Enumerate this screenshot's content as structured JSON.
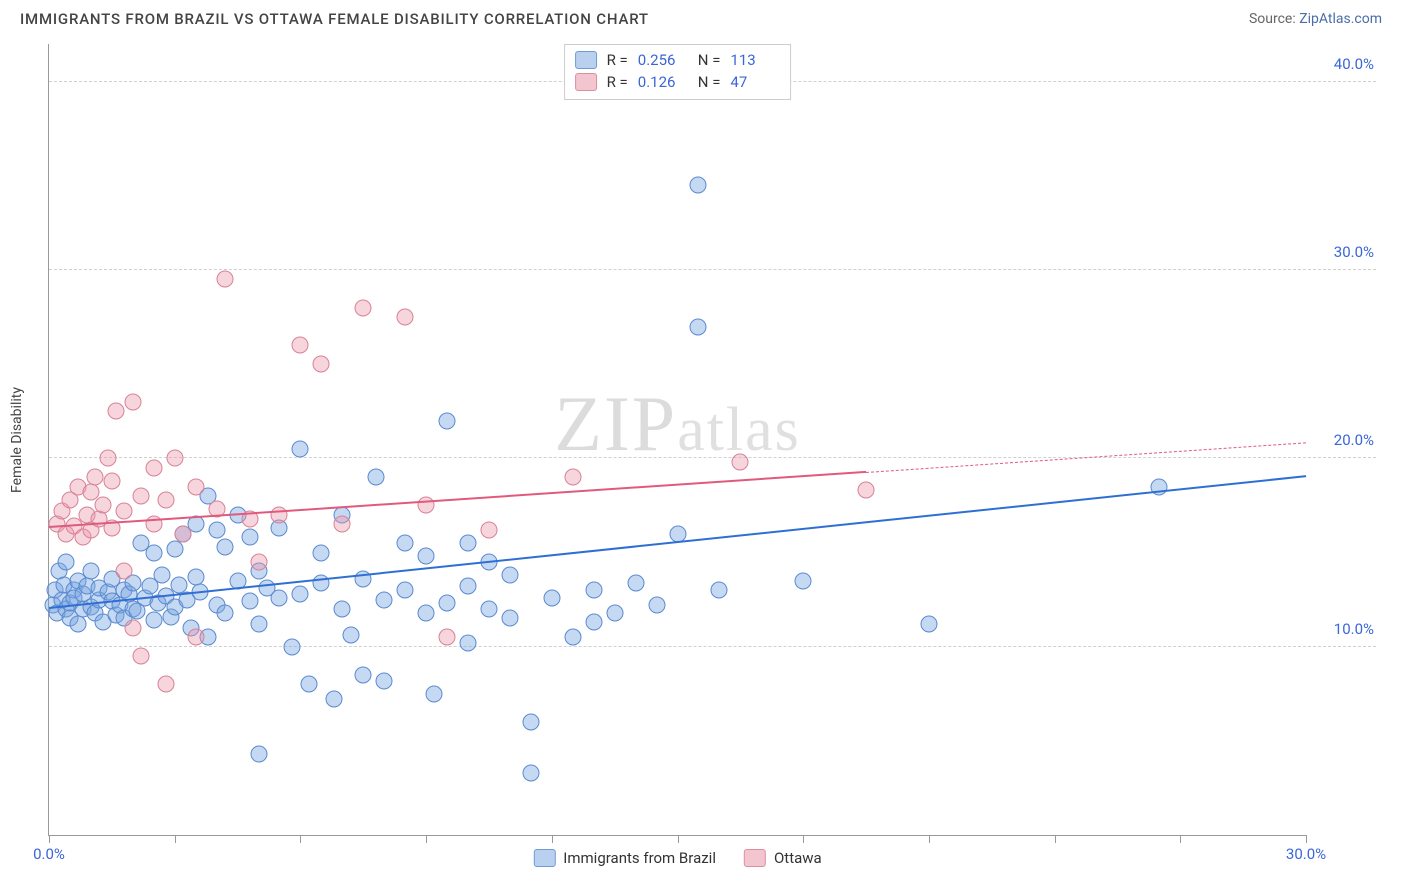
{
  "header": {
    "title": "IMMIGRANTS FROM BRAZIL VS OTTAWA FEMALE DISABILITY CORRELATION CHART",
    "source_prefix": "Source: ",
    "source_link": "ZipAtlas.com"
  },
  "watermark": {
    "z": "ZIP",
    "rest": "atlas"
  },
  "chart": {
    "type": "scatter",
    "xlim": [
      0,
      30
    ],
    "ylim": [
      0,
      42
    ],
    "x_ticks": [
      0,
      3,
      6,
      9,
      12,
      15,
      18,
      21,
      24,
      27,
      30
    ],
    "x_labels": [
      {
        "v": 0,
        "t": "0.0%"
      },
      {
        "v": 30,
        "t": "30.0%"
      }
    ],
    "y_gridlines": [
      10,
      20,
      30,
      40
    ],
    "y_labels": [
      {
        "v": 10,
        "t": "10.0%"
      },
      {
        "v": 20,
        "t": "20.0%"
      },
      {
        "v": 30,
        "t": "30.0%"
      },
      {
        "v": 40,
        "t": "40.0%"
      }
    ],
    "yaxis_title": "Female Disability",
    "marker_radius": 8.5,
    "marker_border_width": 1.2,
    "series": [
      {
        "name": "Immigrants from Brazil",
        "R": "0.256",
        "N": "113",
        "fill": "rgba(120,165,225,0.42)",
        "stroke": "#5a8ad0",
        "swatch_fill": "#b9d0ef",
        "swatch_stroke": "#6f9cd8",
        "trend_color": "#2f6fd4",
        "trend": {
          "x1": 0,
          "y1": 12.0,
          "x2": 30,
          "y2": 19.0,
          "x_data_max": 30
        },
        "points": [
          [
            0.1,
            12.2
          ],
          [
            0.15,
            13.0
          ],
          [
            0.2,
            11.8
          ],
          [
            0.25,
            14.0
          ],
          [
            0.3,
            12.5
          ],
          [
            0.35,
            13.3
          ],
          [
            0.4,
            12.0
          ],
          [
            0.4,
            14.5
          ],
          [
            0.5,
            12.3
          ],
          [
            0.5,
            11.5
          ],
          [
            0.6,
            13.0
          ],
          [
            0.6,
            12.6
          ],
          [
            0.7,
            13.5
          ],
          [
            0.7,
            11.2
          ],
          [
            0.8,
            12.0
          ],
          [
            0.8,
            12.8
          ],
          [
            0.9,
            13.2
          ],
          [
            1.0,
            12.1
          ],
          [
            1.0,
            14.0
          ],
          [
            1.1,
            11.8
          ],
          [
            1.2,
            12.5
          ],
          [
            1.2,
            13.1
          ],
          [
            1.3,
            11.3
          ],
          [
            1.4,
            12.9
          ],
          [
            1.5,
            12.4
          ],
          [
            1.5,
            13.6
          ],
          [
            1.6,
            11.7
          ],
          [
            1.7,
            12.2
          ],
          [
            1.8,
            13.0
          ],
          [
            1.8,
            11.5
          ],
          [
            1.9,
            12.8
          ],
          [
            2.0,
            12.0
          ],
          [
            2.0,
            13.4
          ],
          [
            2.1,
            11.9
          ],
          [
            2.2,
            15.5
          ],
          [
            2.3,
            12.6
          ],
          [
            2.4,
            13.2
          ],
          [
            2.5,
            11.4
          ],
          [
            2.5,
            15.0
          ],
          [
            2.6,
            12.3
          ],
          [
            2.7,
            13.8
          ],
          [
            2.8,
            12.7
          ],
          [
            2.9,
            11.6
          ],
          [
            3.0,
            15.2
          ],
          [
            3.0,
            12.1
          ],
          [
            3.1,
            13.3
          ],
          [
            3.2,
            16.0
          ],
          [
            3.3,
            12.5
          ],
          [
            3.4,
            11.0
          ],
          [
            3.5,
            13.7
          ],
          [
            3.5,
            16.5
          ],
          [
            3.6,
            12.9
          ],
          [
            3.8,
            10.5
          ],
          [
            3.8,
            18.0
          ],
          [
            4.0,
            12.2
          ],
          [
            4.0,
            16.2
          ],
          [
            4.2,
            15.3
          ],
          [
            4.2,
            11.8
          ],
          [
            4.5,
            13.5
          ],
          [
            4.5,
            17.0
          ],
          [
            4.8,
            12.4
          ],
          [
            4.8,
            15.8
          ],
          [
            5.0,
            11.2
          ],
          [
            5.0,
            14.0
          ],
          [
            5.0,
            4.3
          ],
          [
            5.2,
            13.1
          ],
          [
            5.5,
            12.6
          ],
          [
            5.5,
            16.3
          ],
          [
            5.8,
            10.0
          ],
          [
            6.0,
            12.8
          ],
          [
            6.0,
            20.5
          ],
          [
            6.2,
            8.0
          ],
          [
            6.5,
            13.4
          ],
          [
            6.5,
            15.0
          ],
          [
            6.8,
            7.2
          ],
          [
            7.0,
            12.0
          ],
          [
            7.0,
            17.0
          ],
          [
            7.2,
            10.6
          ],
          [
            7.5,
            13.6
          ],
          [
            7.5,
            8.5
          ],
          [
            7.8,
            19.0
          ],
          [
            8.0,
            12.5
          ],
          [
            8.0,
            8.2
          ],
          [
            8.5,
            13.0
          ],
          [
            8.5,
            15.5
          ],
          [
            9.0,
            11.8
          ],
          [
            9.0,
            14.8
          ],
          [
            9.2,
            7.5
          ],
          [
            9.5,
            12.3
          ],
          [
            9.5,
            22.0
          ],
          [
            10.0,
            13.2
          ],
          [
            10.0,
            10.2
          ],
          [
            10.0,
            15.5
          ],
          [
            10.5,
            12.0
          ],
          [
            10.5,
            14.5
          ],
          [
            11.0,
            11.5
          ],
          [
            11.0,
            13.8
          ],
          [
            11.5,
            6.0
          ],
          [
            11.5,
            3.3
          ],
          [
            12.0,
            12.6
          ],
          [
            12.5,
            10.5
          ],
          [
            13.0,
            13.0
          ],
          [
            13.0,
            11.3
          ],
          [
            13.5,
            11.8
          ],
          [
            14.0,
            13.4
          ],
          [
            14.5,
            12.2
          ],
          [
            15.0,
            16.0
          ],
          [
            15.5,
            27.0
          ],
          [
            15.5,
            34.5
          ],
          [
            16.0,
            13.0
          ],
          [
            18.0,
            13.5
          ],
          [
            21.0,
            11.2
          ],
          [
            26.5,
            18.5
          ]
        ]
      },
      {
        "name": "Ottawa",
        "R": "0.126",
        "N": "47",
        "fill": "rgba(235,150,170,0.40)",
        "stroke": "#d88296",
        "swatch_fill": "#f2c5cf",
        "swatch_stroke": "#dd8fa2",
        "trend_color": "#e05a7d",
        "trend": {
          "x1": 0,
          "y1": 16.3,
          "x2": 30,
          "y2": 20.8,
          "x_data_max": 19.5
        },
        "points": [
          [
            0.2,
            16.5
          ],
          [
            0.3,
            17.2
          ],
          [
            0.4,
            16.0
          ],
          [
            0.5,
            17.8
          ],
          [
            0.6,
            16.4
          ],
          [
            0.7,
            18.5
          ],
          [
            0.8,
            15.8
          ],
          [
            0.9,
            17.0
          ],
          [
            1.0,
            16.2
          ],
          [
            1.0,
            18.2
          ],
          [
            1.1,
            19.0
          ],
          [
            1.2,
            16.8
          ],
          [
            1.3,
            17.5
          ],
          [
            1.4,
            20.0
          ],
          [
            1.5,
            16.3
          ],
          [
            1.5,
            18.8
          ],
          [
            1.6,
            22.5
          ],
          [
            1.8,
            17.2
          ],
          [
            1.8,
            14.0
          ],
          [
            2.0,
            11.0
          ],
          [
            2.0,
            23.0
          ],
          [
            2.2,
            18.0
          ],
          [
            2.2,
            9.5
          ],
          [
            2.5,
            16.5
          ],
          [
            2.5,
            19.5
          ],
          [
            2.8,
            17.8
          ],
          [
            2.8,
            8.0
          ],
          [
            3.0,
            20.0
          ],
          [
            3.2,
            16.0
          ],
          [
            3.5,
            18.5
          ],
          [
            3.5,
            10.5
          ],
          [
            4.0,
            17.3
          ],
          [
            4.2,
            29.5
          ],
          [
            4.8,
            16.8
          ],
          [
            5.0,
            14.5
          ],
          [
            5.5,
            17.0
          ],
          [
            6.0,
            26.0
          ],
          [
            6.5,
            25.0
          ],
          [
            7.0,
            16.5
          ],
          [
            7.5,
            28.0
          ],
          [
            8.5,
            27.5
          ],
          [
            9.0,
            17.5
          ],
          [
            9.5,
            10.5
          ],
          [
            10.5,
            16.2
          ],
          [
            12.5,
            19.0
          ],
          [
            16.5,
            19.8
          ],
          [
            19.5,
            18.3
          ]
        ]
      }
    ]
  },
  "legend_top": {
    "r_label": "R =",
    "n_label": "N ="
  }
}
